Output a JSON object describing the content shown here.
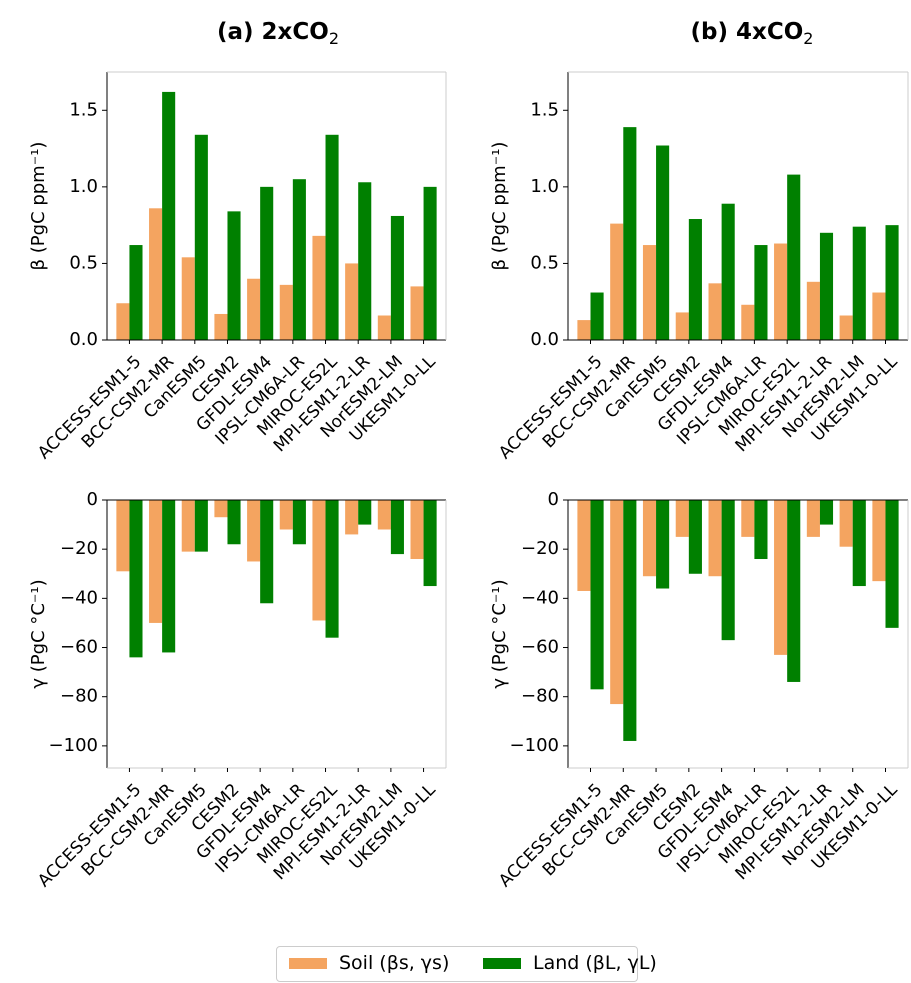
{
  "chart_data": [
    {
      "type": "bar",
      "panel_title": "(a) 2xCO2",
      "categories": [
        "ACCESS-ESM1-5",
        "BCC-CSM2-MR",
        "CanESM5",
        "CESM2",
        "GFDL-ESM4",
        "IPSL-CM6A-LR",
        "MIROC-ES2L",
        "MPI-ESM1-2-LR",
        "NorESM2-LM",
        "UKESM1-0-LL"
      ],
      "ylabel": "β (PgC ppm⁻¹)",
      "ylim": [
        0,
        1.75
      ],
      "yticks": [
        0.0,
        0.5,
        1.0,
        1.5
      ],
      "yticklabels": [
        "0.0",
        "0.5",
        "1.0",
        "1.5"
      ],
      "series": [
        {
          "name": "Soil",
          "values": [
            0.24,
            0.86,
            0.54,
            0.17,
            0.4,
            0.36,
            0.68,
            0.5,
            0.16,
            0.35
          ]
        },
        {
          "name": "Land",
          "values": [
            0.62,
            1.62,
            1.34,
            0.84,
            1.0,
            1.05,
            1.34,
            1.03,
            0.81,
            1.0
          ]
        }
      ]
    },
    {
      "type": "bar",
      "panel_title": "(b) 4xCO2",
      "categories": [
        "ACCESS-ESM1-5",
        "BCC-CSM2-MR",
        "CanESM5",
        "CESM2",
        "GFDL-ESM4",
        "IPSL-CM6A-LR",
        "MIROC-ES2L",
        "MPI-ESM1-2-LR",
        "NorESM2-LM",
        "UKESM1-0-LL"
      ],
      "ylabel": "β (PgC ppm⁻¹)",
      "ylim": [
        0,
        1.75
      ],
      "yticks": [
        0.0,
        0.5,
        1.0,
        1.5
      ],
      "yticklabels": [
        "0.0",
        "0.5",
        "1.0",
        "1.5"
      ],
      "series": [
        {
          "name": "Soil",
          "values": [
            0.13,
            0.76,
            0.62,
            0.18,
            0.37,
            0.23,
            0.63,
            0.38,
            0.16,
            0.31
          ]
        },
        {
          "name": "Land",
          "values": [
            0.31,
            1.39,
            1.27,
            0.79,
            0.89,
            0.62,
            1.08,
            0.7,
            0.74,
            0.75
          ]
        }
      ]
    },
    {
      "type": "bar",
      "categories": [
        "ACCESS-ESM1-5",
        "BCC-CSM2-MR",
        "CanESM5",
        "CESM2",
        "GFDL-ESM4",
        "IPSL-CM6A-LR",
        "MIROC-ES2L",
        "MPI-ESM1-2-LR",
        "NorESM2-LM",
        "UKESM1-0-LL"
      ],
      "ylabel": "γ (PgC °C⁻¹)",
      "ylim": [
        -109,
        0
      ],
      "yticks": [
        0,
        -20,
        -40,
        -60,
        -80,
        -100
      ],
      "yticklabels": [
        "0",
        "−20",
        "−40",
        "−60",
        "−80",
        "−100"
      ],
      "series": [
        {
          "name": "Soil",
          "values": [
            -29,
            -50,
            -21,
            -7,
            -25,
            -12,
            -49,
            -14,
            -12,
            -24
          ]
        },
        {
          "name": "Land",
          "values": [
            -64,
            -62,
            -21,
            -18,
            -42,
            -18,
            -56,
            -10,
            -22,
            -35
          ]
        }
      ]
    },
    {
      "type": "bar",
      "categories": [
        "ACCESS-ESM1-5",
        "BCC-CSM2-MR",
        "CanESM5",
        "CESM2",
        "GFDL-ESM4",
        "IPSL-CM6A-LR",
        "MIROC-ES2L",
        "MPI-ESM1-2-LR",
        "NorESM2-LM",
        "UKESM1-0-LL"
      ],
      "ylabel": "γ (PgC °C⁻¹)",
      "ylim": [
        -109,
        0
      ],
      "yticks": [
        0,
        -20,
        -40,
        -60,
        -80,
        -100
      ],
      "yticklabels": [
        "0",
        "−20",
        "−40",
        "−60",
        "−80",
        "−100"
      ],
      "series": [
        {
          "name": "Soil",
          "values": [
            -37,
            -83,
            -31,
            -15,
            -31,
            -15,
            -63,
            -15,
            -19,
            -33
          ]
        },
        {
          "name": "Land",
          "values": [
            -77,
            -98,
            -36,
            -30,
            -57,
            -24,
            -74,
            -10,
            -35,
            -52
          ]
        }
      ]
    }
  ],
  "legend": {
    "soil_label": "Soil (βs, γs)",
    "land_label": "Land (βL, γL)"
  },
  "colors": {
    "soil": "#f4a460",
    "land": "#008000",
    "axis": "#000000"
  }
}
